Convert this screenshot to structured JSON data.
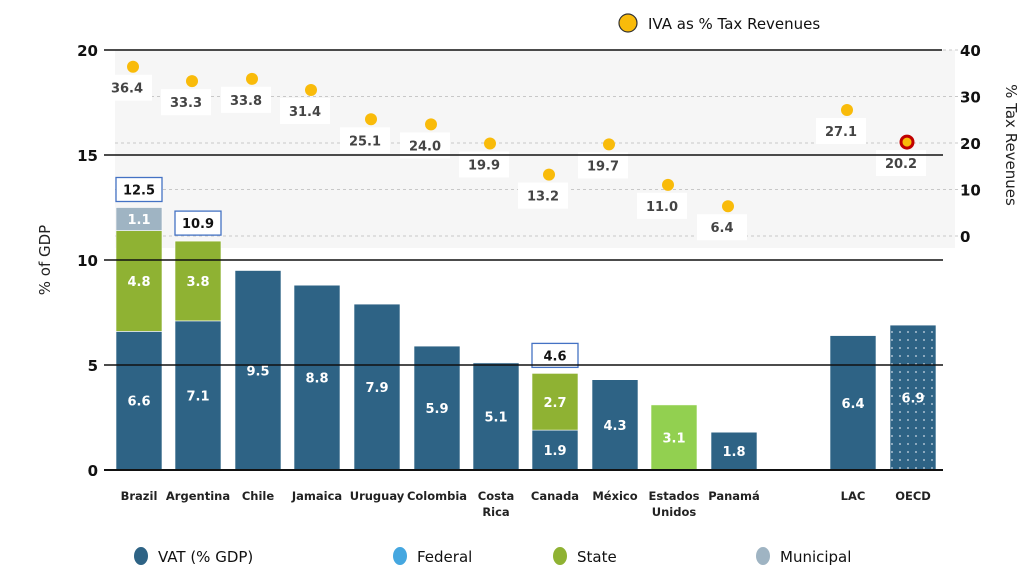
{
  "chart_data": {
    "type": "bar",
    "subtype": "stacked-bar-with-secondary-scatter",
    "categories": [
      "Brazil",
      "Argentina",
      "Chile",
      "Jamaica",
      "Uruguay",
      "Colombia",
      "Costa Rica",
      "Canada",
      "México",
      "Estados Unidos",
      "Panamá",
      "LAC",
      "OECD"
    ],
    "category_lines": [
      [
        "Brazil"
      ],
      [
        "Argentina"
      ],
      [
        "Chile"
      ],
      [
        "Jamaica"
      ],
      [
        "Uruguay"
      ],
      [
        "Colombia"
      ],
      [
        "Costa",
        "Rica"
      ],
      [
        "Canada"
      ],
      [
        "México"
      ],
      [
        "Estados",
        "Unidos"
      ],
      [
        "Panamá"
      ],
      [
        "LAC"
      ],
      [
        "OECD"
      ]
    ],
    "series": [
      {
        "name": "VAT (% GDP)",
        "axis": "left",
        "color": "#2e6385",
        "values": [
          6.6,
          7.1,
          9.5,
          8.8,
          7.9,
          5.9,
          5.1,
          1.9,
          4.3,
          null,
          1.8,
          6.4,
          6.9
        ]
      },
      {
        "name": "Federal",
        "axis": "left",
        "color": "#45a7e0",
        "values": [
          null,
          null,
          null,
          null,
          null,
          null,
          null,
          null,
          null,
          null,
          null,
          null,
          null
        ]
      },
      {
        "name": "State",
        "axis": "left",
        "color": "#8fb233",
        "values": [
          4.8,
          3.8,
          null,
          null,
          null,
          null,
          null,
          2.7,
          null,
          3.1,
          null,
          null,
          null
        ]
      },
      {
        "name": "Municipal",
        "axis": "left",
        "color": "#9fb4c3",
        "values": [
          1.1,
          null,
          null,
          null,
          null,
          null,
          null,
          null,
          null,
          null,
          null,
          null,
          null
        ]
      },
      {
        "name": "IVA as % Tax Revenues",
        "axis": "right",
        "type": "scatter",
        "color": "#f9bb0a",
        "values": [
          36.4,
          33.3,
          33.8,
          31.4,
          25.1,
          24.0,
          19.9,
          13.2,
          19.7,
          11.0,
          6.4,
          27.1,
          20.2
        ]
      }
    ],
    "totals": [
      12.5,
      10.9,
      null,
      null,
      null,
      null,
      null,
      4.6,
      null,
      null,
      null,
      null,
      null
    ],
    "special": {
      "estados_unidos_state_color": "#92d050",
      "oecd_bar_pattern": "dotted",
      "oecd_point_ring_color": "#c00000"
    },
    "ylabel": "% of GDP",
    "ylim": [
      0,
      20
    ],
    "yticks": [
      0,
      5,
      10,
      15,
      20
    ],
    "y2label": "% Tax Revenues",
    "y2lim": [
      0,
      40
    ],
    "y2ticks": [
      0,
      10,
      20,
      30,
      40
    ],
    "xlabel": "",
    "title": "",
    "grid": true,
    "legend": {
      "top": [
        "IVA as % Tax Revenues"
      ],
      "bottom": [
        "VAT (% GDP)",
        "Federal",
        "State",
        "Municipal"
      ],
      "placement": "top-right and bottom"
    }
  }
}
